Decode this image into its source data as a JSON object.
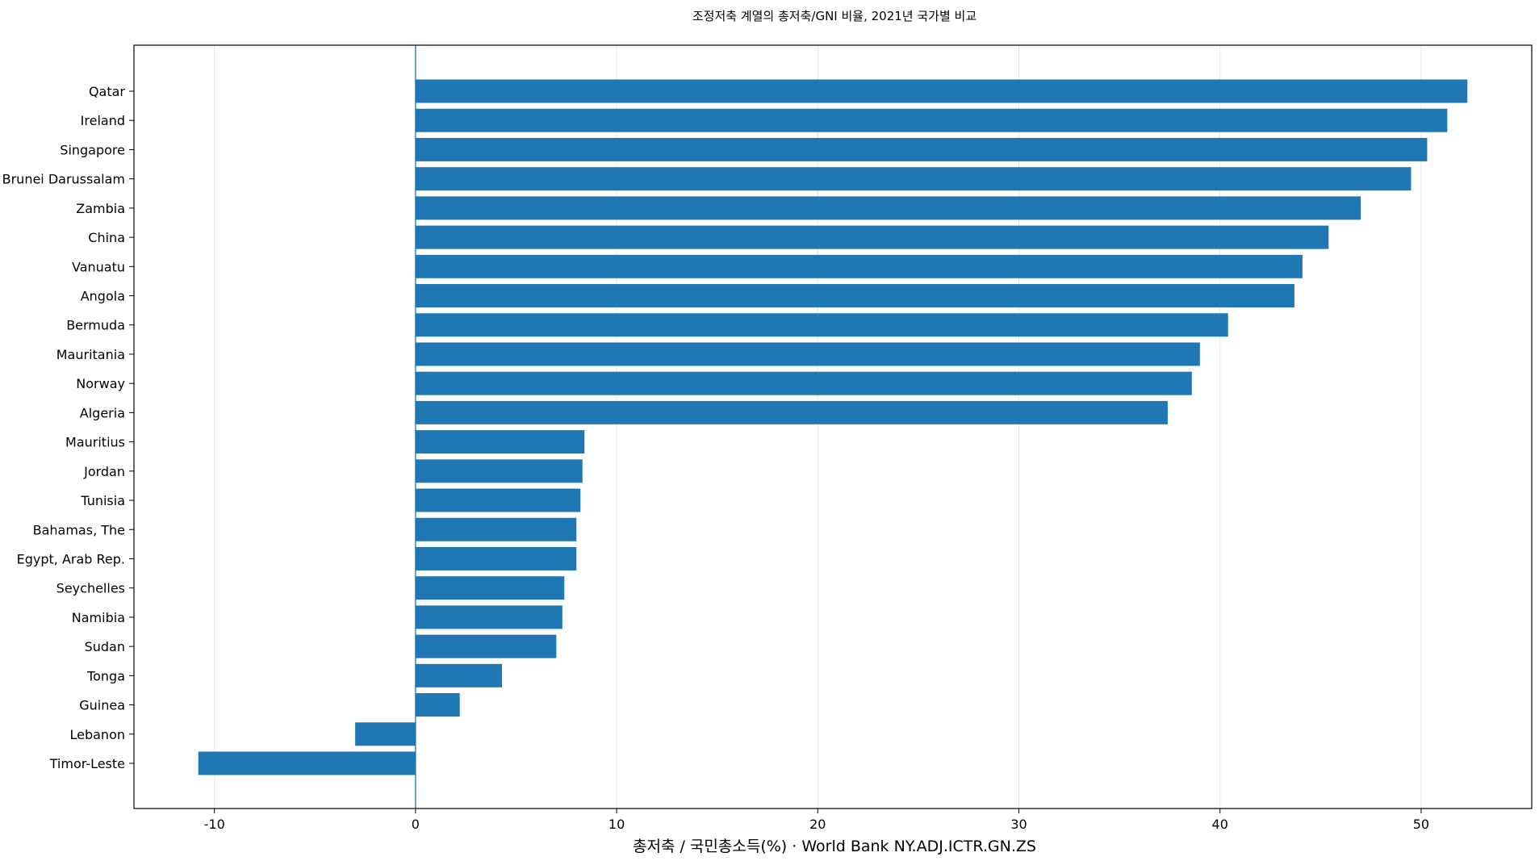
{
  "chart_data": {
    "type": "bar",
    "orientation": "horizontal",
    "title": "조정저축 계열의 총저축/GNI 비율, 2021년 국가별 비교",
    "xlabel": "총저축 / 국민총소득(%) · World Bank NY.ADJ.ICTR.GN.ZS",
    "ylabel": "",
    "xlim": [
      -14,
      55.5
    ],
    "xticks": [
      -10,
      0,
      10,
      20,
      30,
      40,
      50
    ],
    "grid": "x",
    "reference_line": 0,
    "bar_color": "#1f77b4",
    "categories": [
      "Qatar",
      "Ireland",
      "Singapore",
      "Brunei Darussalam",
      "Zambia",
      "China",
      "Vanuatu",
      "Angola",
      "Bermuda",
      "Mauritania",
      "Norway",
      "Algeria",
      "Mauritius",
      "Jordan",
      "Tunisia",
      "Bahamas, The",
      "Egypt, Arab Rep.",
      "Seychelles",
      "Namibia",
      "Sudan",
      "Tonga",
      "Guinea",
      "Lebanon",
      "Timor-Leste"
    ],
    "values": [
      52.3,
      51.3,
      50.3,
      49.5,
      47.0,
      45.4,
      44.1,
      43.7,
      40.4,
      39.0,
      38.6,
      37.4,
      8.4,
      8.3,
      8.2,
      8.0,
      8.0,
      7.4,
      7.3,
      7.0,
      4.3,
      2.2,
      -3.0,
      -10.8
    ]
  }
}
